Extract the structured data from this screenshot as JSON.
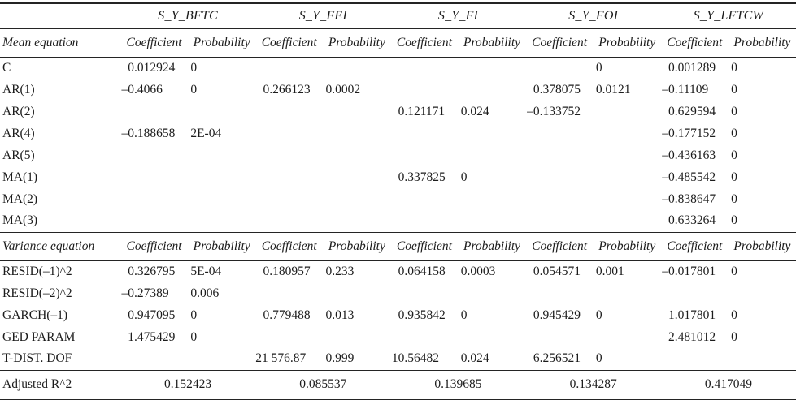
{
  "colors": {
    "text": "#1c1c1c",
    "rule": "#242424",
    "background": "#ffffff"
  },
  "table": {
    "groups": [
      "S_Y_BFTC",
      "S_Y_FEI",
      "S_Y_FI",
      "S_Y_FOI",
      "S_Y_LFTCW"
    ],
    "sub_headers": [
      "Coefficient",
      "Probability"
    ],
    "mean_section": {
      "label": "Mean equation",
      "rows": [
        {
          "label": "C",
          "cells": [
            "0.012924",
            "0",
            "",
            "",
            "",
            "",
            "",
            "0",
            "0.001289",
            "0"
          ]
        },
        {
          "label": "AR(1)",
          "cells": [
            "–0.4066",
            "0",
            "0.266123",
            "0.0002",
            "",
            "",
            "0.378075",
            "0.0121",
            "–0.11109",
            "0"
          ]
        },
        {
          "label": "AR(2)",
          "cells": [
            "",
            "",
            "",
            "",
            "0.121171",
            "0.024",
            "–0.133752",
            "",
            "0.629594",
            "0"
          ]
        },
        {
          "label": "AR(4)",
          "cells": [
            "–0.188658",
            "2E-04",
            "",
            "",
            "",
            "",
            "",
            "",
            "–0.177152",
            "0"
          ]
        },
        {
          "label": "AR(5)",
          "cells": [
            "",
            "",
            "",
            "",
            "",
            "",
            "",
            "",
            "–0.436163",
            "0"
          ]
        },
        {
          "label": "MA(1)",
          "cells": [
            "",
            "",
            "",
            "",
            "0.337825",
            "0",
            "",
            "",
            "–0.485542",
            "0"
          ]
        },
        {
          "label": "MA(2)",
          "cells": [
            "",
            "",
            "",
            "",
            "",
            "",
            "",
            "",
            "–0.838647",
            "0"
          ]
        },
        {
          "label": "MA(3)",
          "cells": [
            "",
            "",
            "",
            "",
            "",
            "",
            "",
            "",
            "0.633264",
            "0"
          ]
        }
      ]
    },
    "variance_section": {
      "label": "Variance equation",
      "rows": [
        {
          "label": "RESID(–1)^2",
          "cells": [
            "0.326795",
            "5E-04",
            "0.180957",
            "0.233",
            "0.064158",
            "0.0003",
            "0.054571",
            "0.001",
            "–0.017801",
            "0"
          ]
        },
        {
          "label": "RESID(–2)^2",
          "cells": [
            "–0.27389",
            "0.006",
            "",
            "",
            "",
            "",
            "",
            "",
            "",
            ""
          ]
        },
        {
          "label": "GARCH(–1)",
          "cells": [
            "0.947095",
            "0",
            "0.779488",
            "0.013",
            "0.935842",
            "0",
            "0.945429",
            "0",
            "1.017801",
            "0"
          ]
        },
        {
          "label": "GED PARAM",
          "cells": [
            "1.475429",
            "0",
            "",
            "",
            "",
            "",
            "",
            "",
            "2.481012",
            "0"
          ]
        },
        {
          "label": "T-DIST. DOF",
          "cells": [
            "",
            "",
            "21 576.87",
            "0.999",
            "10.56482",
            "0.024",
            "6.256521",
            "0",
            "",
            ""
          ]
        }
      ]
    },
    "footer": {
      "label": "Adjusted R^2",
      "values": [
        "0.152423",
        "0.085537",
        "0.139685",
        "0.134287",
        "0.417049"
      ]
    }
  }
}
